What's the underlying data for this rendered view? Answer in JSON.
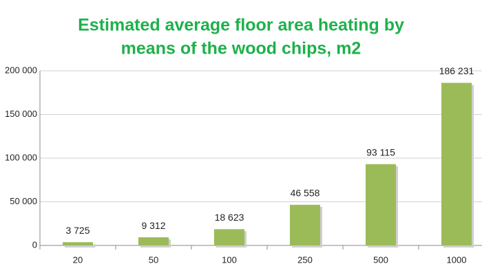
{
  "chart_data": {
    "type": "bar",
    "title": "Estimated average floor area heating by",
    "subtitle": "means of the wood chips, m2",
    "categories": [
      "20",
      "50",
      "100",
      "250",
      "500",
      "1000"
    ],
    "values": [
      3725,
      9312,
      18623,
      46558,
      93115,
      186231
    ],
    "value_labels": [
      "3 725",
      "9 312",
      "18 623",
      "46 558",
      "93 115",
      "186 231"
    ],
    "color": "#9bbb59",
    "ylim": [
      0,
      200000
    ],
    "yticks": [
      0,
      {
        "value": 50000,
        "label": "50 000"
      },
      {
        "value": 100000,
        "label": "100 000"
      },
      {
        "value": 150000,
        "label": "150 000"
      },
      {
        "value": 200000,
        "label": "200 000"
      }
    ],
    "grid": true
  }
}
